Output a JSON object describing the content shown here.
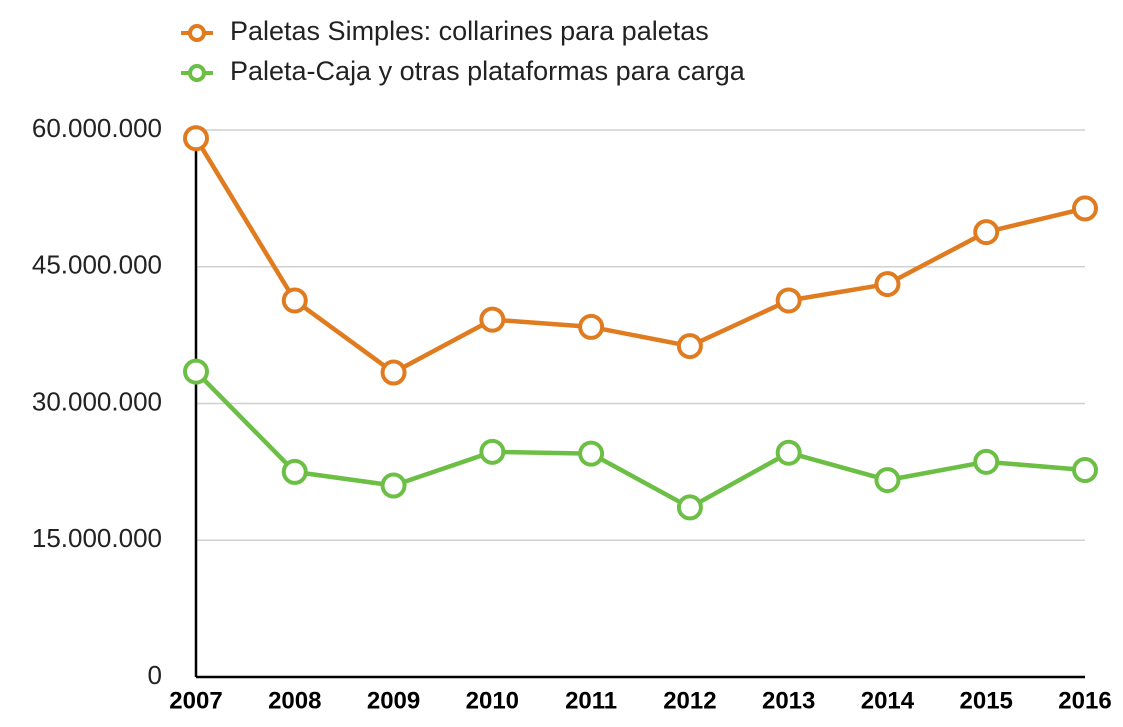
{
  "chart_data": {
    "type": "line",
    "categories": [
      "2007",
      "2008",
      "2009",
      "2010",
      "2011",
      "2012",
      "2013",
      "2014",
      "2015",
      "2016"
    ],
    "series": [
      {
        "name": "Paletas Simples: collarines para paletas",
        "color": "#e07b1f",
        "values": [
          59100000,
          41300000,
          33400000,
          39200000,
          38400000,
          36300000,
          41300000,
          43100000,
          48800000,
          51400000
        ]
      },
      {
        "name": "Paleta-Caja y otras plataformas para carga",
        "color": "#6cbf45",
        "values": [
          33500000,
          22500000,
          21000000,
          24700000,
          24500000,
          18600000,
          24600000,
          21600000,
          23600000,
          22700000
        ]
      }
    ],
    "ylim": [
      0,
      60000000
    ],
    "yticks": [
      0,
      {
        "value": 15000000,
        "label": "15.000.000"
      },
      {
        "value": 30000000,
        "label": "30.000.000"
      },
      {
        "value": 45000000,
        "label": "45.000.000"
      },
      {
        "value": 60000000,
        "label": "60.000.000"
      }
    ],
    "grid": true,
    "legend": "top"
  }
}
